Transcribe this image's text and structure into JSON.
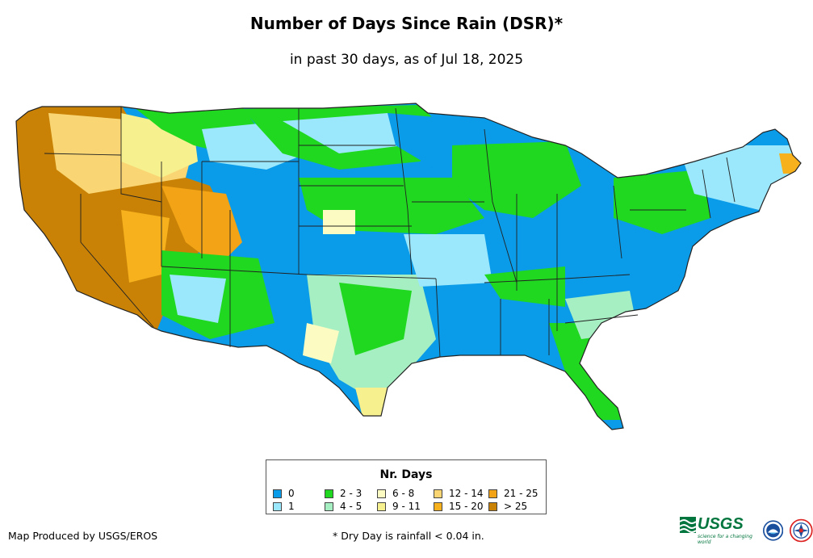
{
  "title": "Number of Days Since Rain (DSR)*",
  "subtitle": "in past 30 days, as of Jul 18, 2025",
  "legend": {
    "title": "Nr. Days",
    "items": [
      {
        "label": "0",
        "color": "#0a9be9"
      },
      {
        "label": "1",
        "color": "#9be7fb"
      },
      {
        "label": "2 - 3",
        "color": "#1fd81f"
      },
      {
        "label": "4 - 5",
        "color": "#a6efc2"
      },
      {
        "label": "6 - 8",
        "color": "#fcfcc2"
      },
      {
        "label": "9 - 11",
        "color": "#f7f08e"
      },
      {
        "label": "12 - 14",
        "color": "#f9d673"
      },
      {
        "label": "15 - 20",
        "color": "#f6b11d"
      },
      {
        "label": "21 - 25",
        "color": "#f2a316"
      },
      {
        "label": "> 25",
        "color": "#c98206"
      }
    ]
  },
  "credit": "Map Produced by USGS/EROS",
  "footnote": "* Dry Day is rainfall < 0.04 in.",
  "logos": {
    "usgs": "USGS",
    "usgs_tagline": "science for a changing world",
    "noaa": "NOAA"
  }
}
